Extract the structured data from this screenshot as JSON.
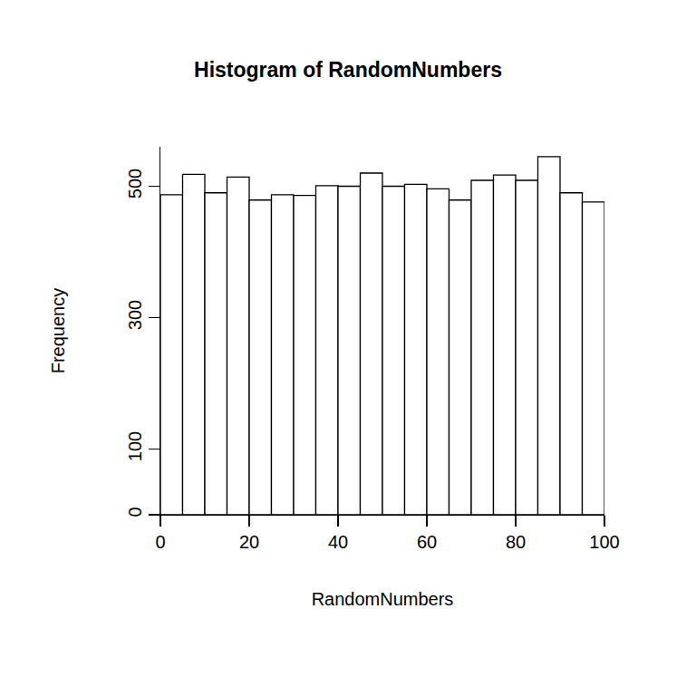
{
  "chart_data": {
    "type": "histogram",
    "title": "Histogram of RandomNumbers",
    "x_label": "RandomNumbers",
    "y_label": "Frequency",
    "bins": [
      0,
      5,
      10,
      15,
      20,
      25,
      30,
      35,
      40,
      45,
      50,
      55,
      60,
      65,
      70,
      75,
      80,
      85,
      90,
      95,
      100
    ],
    "values": [
      487,
      518,
      490,
      514,
      479,
      487,
      486,
      501,
      500,
      520,
      500,
      503,
      496,
      479,
      509,
      517,
      509,
      545,
      490,
      476
    ],
    "color": "#ffffff",
    "xlim": [
      0,
      100
    ],
    "xticks": [
      0,
      20,
      40,
      60,
      80,
      100
    ],
    "ylim": [
      0,
      560
    ],
    "yticks": [
      0,
      100,
      300,
      500
    ],
    "grid": false
  }
}
